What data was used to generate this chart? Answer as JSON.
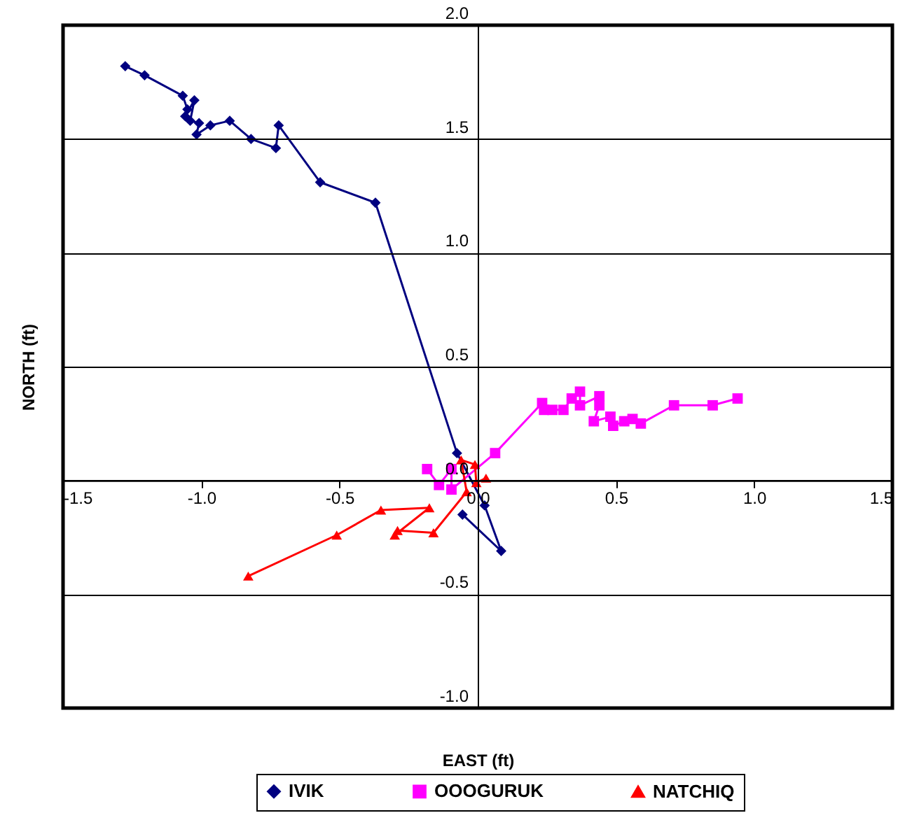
{
  "chart_data": {
    "type": "line",
    "xlabel": "EAST (ft)",
    "ylabel": "NORTH (ft)",
    "xlim": [
      -1.5,
      1.5
    ],
    "ylim": [
      -1.0,
      2.0
    ],
    "xticks": [
      {
        "value": -1.5,
        "label": "-1.5"
      },
      {
        "value": -1,
        "label": "-1.0"
      },
      {
        "value": -0.5,
        "label": "-0.5"
      },
      {
        "value": 0,
        "label": "0.0"
      },
      {
        "value": 0.5,
        "label": "0.5"
      },
      {
        "value": 1,
        "label": "1.0"
      },
      {
        "value": 1.5,
        "label": "1.5"
      }
    ],
    "yticks": [
      {
        "value": -1,
        "label": "-1.0"
      },
      {
        "value": -0.5,
        "label": "-0.5"
      },
      {
        "value": 0,
        "label": "0.0"
      },
      {
        "value": 0.5,
        "label": "0.5"
      },
      {
        "value": 1,
        "label": "1.0"
      },
      {
        "value": 1.5,
        "label": "1.5"
      },
      {
        "value": 2,
        "label": "2.0"
      }
    ],
    "grid": "y",
    "legend": "bottom",
    "series": [
      {
        "name": "IVIK",
        "color": "#000080",
        "marker": "diamond",
        "x": [
          -1.275,
          -1.205,
          -1.067,
          -1.05,
          -1.058,
          -1.025,
          -1.04,
          -1.008,
          -1.017,
          -0.967,
          -0.897,
          -0.82,
          -0.73,
          -0.72,
          -0.57,
          -0.37,
          -0.075,
          0.025,
          0.085,
          -0.055
        ],
        "values": [
          1.82,
          1.78,
          1.69,
          1.63,
          1.6,
          1.67,
          1.58,
          1.57,
          1.52,
          1.56,
          1.58,
          1.5,
          1.46,
          1.56,
          1.31,
          1.22,
          0.12,
          -0.11,
          -0.31,
          -0.15
        ]
      },
      {
        "name": "OOOGURUK",
        "color": "#ff00ff",
        "marker": "square",
        "x": [
          -0.183,
          -0.14,
          -0.095,
          -0.095,
          0.063,
          0.233,
          0.24,
          0.27,
          0.31,
          0.34,
          0.37,
          0.37,
          0.44,
          0.44,
          0.42,
          0.48,
          0.49,
          0.53,
          0.56,
          0.59,
          0.71,
          0.85,
          0.94
        ],
        "values": [
          0.05,
          -0.02,
          0.05,
          -0.04,
          0.12,
          0.34,
          0.31,
          0.31,
          0.31,
          0.36,
          0.39,
          0.33,
          0.37,
          0.33,
          0.26,
          0.28,
          0.24,
          0.26,
          0.27,
          0.25,
          0.33,
          0.33,
          0.36
        ]
      },
      {
        "name": "NATCHIQ",
        "color": "#ff0000",
        "marker": "triangle",
        "x": [
          -0.83,
          -0.51,
          -0.35,
          -0.175,
          -0.3,
          -0.29,
          -0.16,
          -0.04,
          -0.06,
          -0.01,
          -0.005,
          0.03
        ],
        "values": [
          -0.42,
          -0.24,
          -0.13,
          -0.12,
          -0.24,
          -0.22,
          -0.23,
          -0.05,
          0.09,
          0.07,
          -0.01,
          0.01
        ]
      }
    ]
  }
}
